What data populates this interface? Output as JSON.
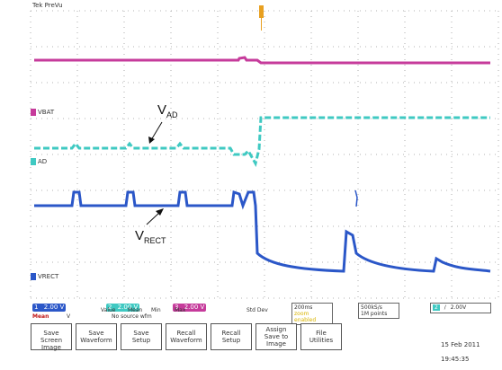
{
  "header": {
    "title": "Tek PreVu"
  },
  "colors": {
    "ch1": "#2b57c8",
    "ch2": "#3fc9c2",
    "ch3": "#c63b9b",
    "grid": "#8a8a8a",
    "trigger": "#e8a020"
  },
  "channels": {
    "ch3_label": "VBAT",
    "ch2_label": "AD",
    "ch1_label": "VRECT"
  },
  "annotations": {
    "v_ad": {
      "main": "V",
      "sub": "AD"
    },
    "v_rect": {
      "main": "V",
      "sub": "RECT"
    }
  },
  "status": {
    "ch1_scale": "2.00 V",
    "ch2_scale": "2.00 V",
    "ch3_scale": "2.00 V",
    "ch2_num": "2",
    "ch3_num": "3",
    "ch1_num": "1",
    "mean_label": "Mean",
    "mean_ch": "V",
    "meas_headers": [
      "Value",
      "Mean",
      "Min",
      "Max",
      "Std Dev"
    ],
    "meas_note": "No source wfm",
    "timebase": "200ms",
    "timebase_sub": "zoom enabled",
    "sample_rate": "500kS/s",
    "record_len": "1M points",
    "trig_ch": "2",
    "trig_slope": "∕",
    "trig_level": "2.00V"
  },
  "menu": {
    "items": [
      "Save\nScreen Image",
      "Save\nWaveform",
      "Save\nSetup",
      "Recall\nWaveform",
      "Recall\nSetup",
      "Assign\nSave to\nImage",
      "File\nUtilities"
    ],
    "date": "15 Feb 2011",
    "time": "19:45:35"
  }
}
